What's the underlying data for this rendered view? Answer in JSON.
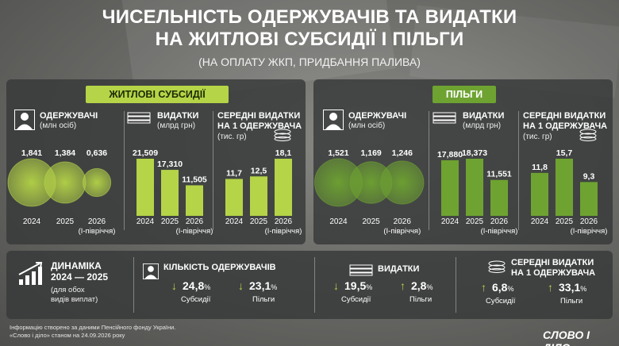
{
  "header": {
    "title_line1": "ЧИСЕЛЬНІСТЬ ОДЕРЖУВАЧІВ ТА ВИДАТКИ",
    "title_line2": "НА ЖИТЛОВІ СУБСИДІЇ І ПІЛЬГИ",
    "subtitle": "(НА ОПЛАТУ ЖКП, ПРИДБАННЯ ПАЛИВА)"
  },
  "sections": {
    "subsidies_label": "ЖИТЛОВІ СУБСИДІЇ",
    "benefits_label": "ПІЛЬГИ"
  },
  "labels": {
    "recipients": "ОДЕРЖУВАЧІ",
    "recipients_unit": "(млн осіб)",
    "expenses": "ВИДАТКИ",
    "expenses_unit": "(млрд грн)",
    "avg_line1": "СЕРЕДНІ ВИДАТКИ",
    "avg_line2": "НА 1 ОДЕРЖУВАЧА",
    "avg_unit": "(тис. гр)",
    "partial_year": "(І-півріччя)"
  },
  "colors": {
    "subsidy_green": "#b5d447",
    "benefit_green": "#6ea331",
    "panel": "#373939"
  },
  "chart_data": [
    {
      "type": "bubble",
      "id": "subsidy_recipients",
      "categories": [
        "2024",
        "2025",
        "2026"
      ],
      "values": [
        1.841,
        1.384,
        0.636
      ],
      "labels": [
        "1,841",
        "1,384",
        "0,636"
      ]
    },
    {
      "type": "bar",
      "id": "subsidy_expenses",
      "categories": [
        "2024",
        "2025",
        "2026"
      ],
      "values": [
        21.509,
        17.31,
        11.505
      ],
      "labels": [
        "21,509",
        "17,310",
        "11,505"
      ]
    },
    {
      "type": "bar",
      "id": "subsidy_avg",
      "categories": [
        "2024",
        "2025",
        "2026"
      ],
      "values": [
        11.7,
        12.5,
        18.1
      ],
      "labels": [
        "11,7",
        "12,5",
        "18,1"
      ]
    },
    {
      "type": "bubble",
      "id": "benefit_recipients",
      "categories": [
        "2024",
        "2025",
        "2026"
      ],
      "values": [
        1.521,
        1.169,
        1.246
      ],
      "labels": [
        "1,521",
        "1,169",
        "1,246"
      ]
    },
    {
      "type": "bar",
      "id": "benefit_expenses",
      "categories": [
        "2024",
        "2025",
        "2026"
      ],
      "values": [
        17.88,
        18.373,
        11.551
      ],
      "labels": [
        "17,880",
        "18,373",
        "11,551"
      ]
    },
    {
      "type": "bar",
      "id": "benefit_avg",
      "categories": [
        "2024",
        "2025",
        "2026"
      ],
      "values": [
        11.8,
        15.7,
        9.3
      ],
      "labels": [
        "11,8",
        "15,7",
        "9,3"
      ]
    }
  ],
  "dynamics": {
    "title": "ДИНАМІКА",
    "period": "2024 — 2025",
    "note_line1": "(для обох",
    "note_line2": "видів виплат)",
    "recipients_title": "КІЛЬКІСТЬ ОДЕРЖУВАЧІВ",
    "expenses_title": "ВИДАТКИ",
    "avg_title_line1": "СЕРЕДНІ ВИДАТКИ",
    "avg_title_line2": "НА 1 ОДЕРЖУВАЧА",
    "subsidies": "Субсидії",
    "benefits": "Пільги",
    "rec_sub": "24,8",
    "rec_ben": "23,1",
    "exp_sub": "19,5",
    "exp_ben": "2,8",
    "avg_sub": "6,8",
    "avg_ben": "33,1",
    "percent": "%",
    "down": "↓",
    "up": "↑"
  },
  "footer": {
    "line1": "Інформацію створено за даними Пенсійного фонду України.",
    "line2": "«Слово і діло» станом на 24.09.2026 року",
    "logo": "СЛОВО І ДІЛО"
  }
}
